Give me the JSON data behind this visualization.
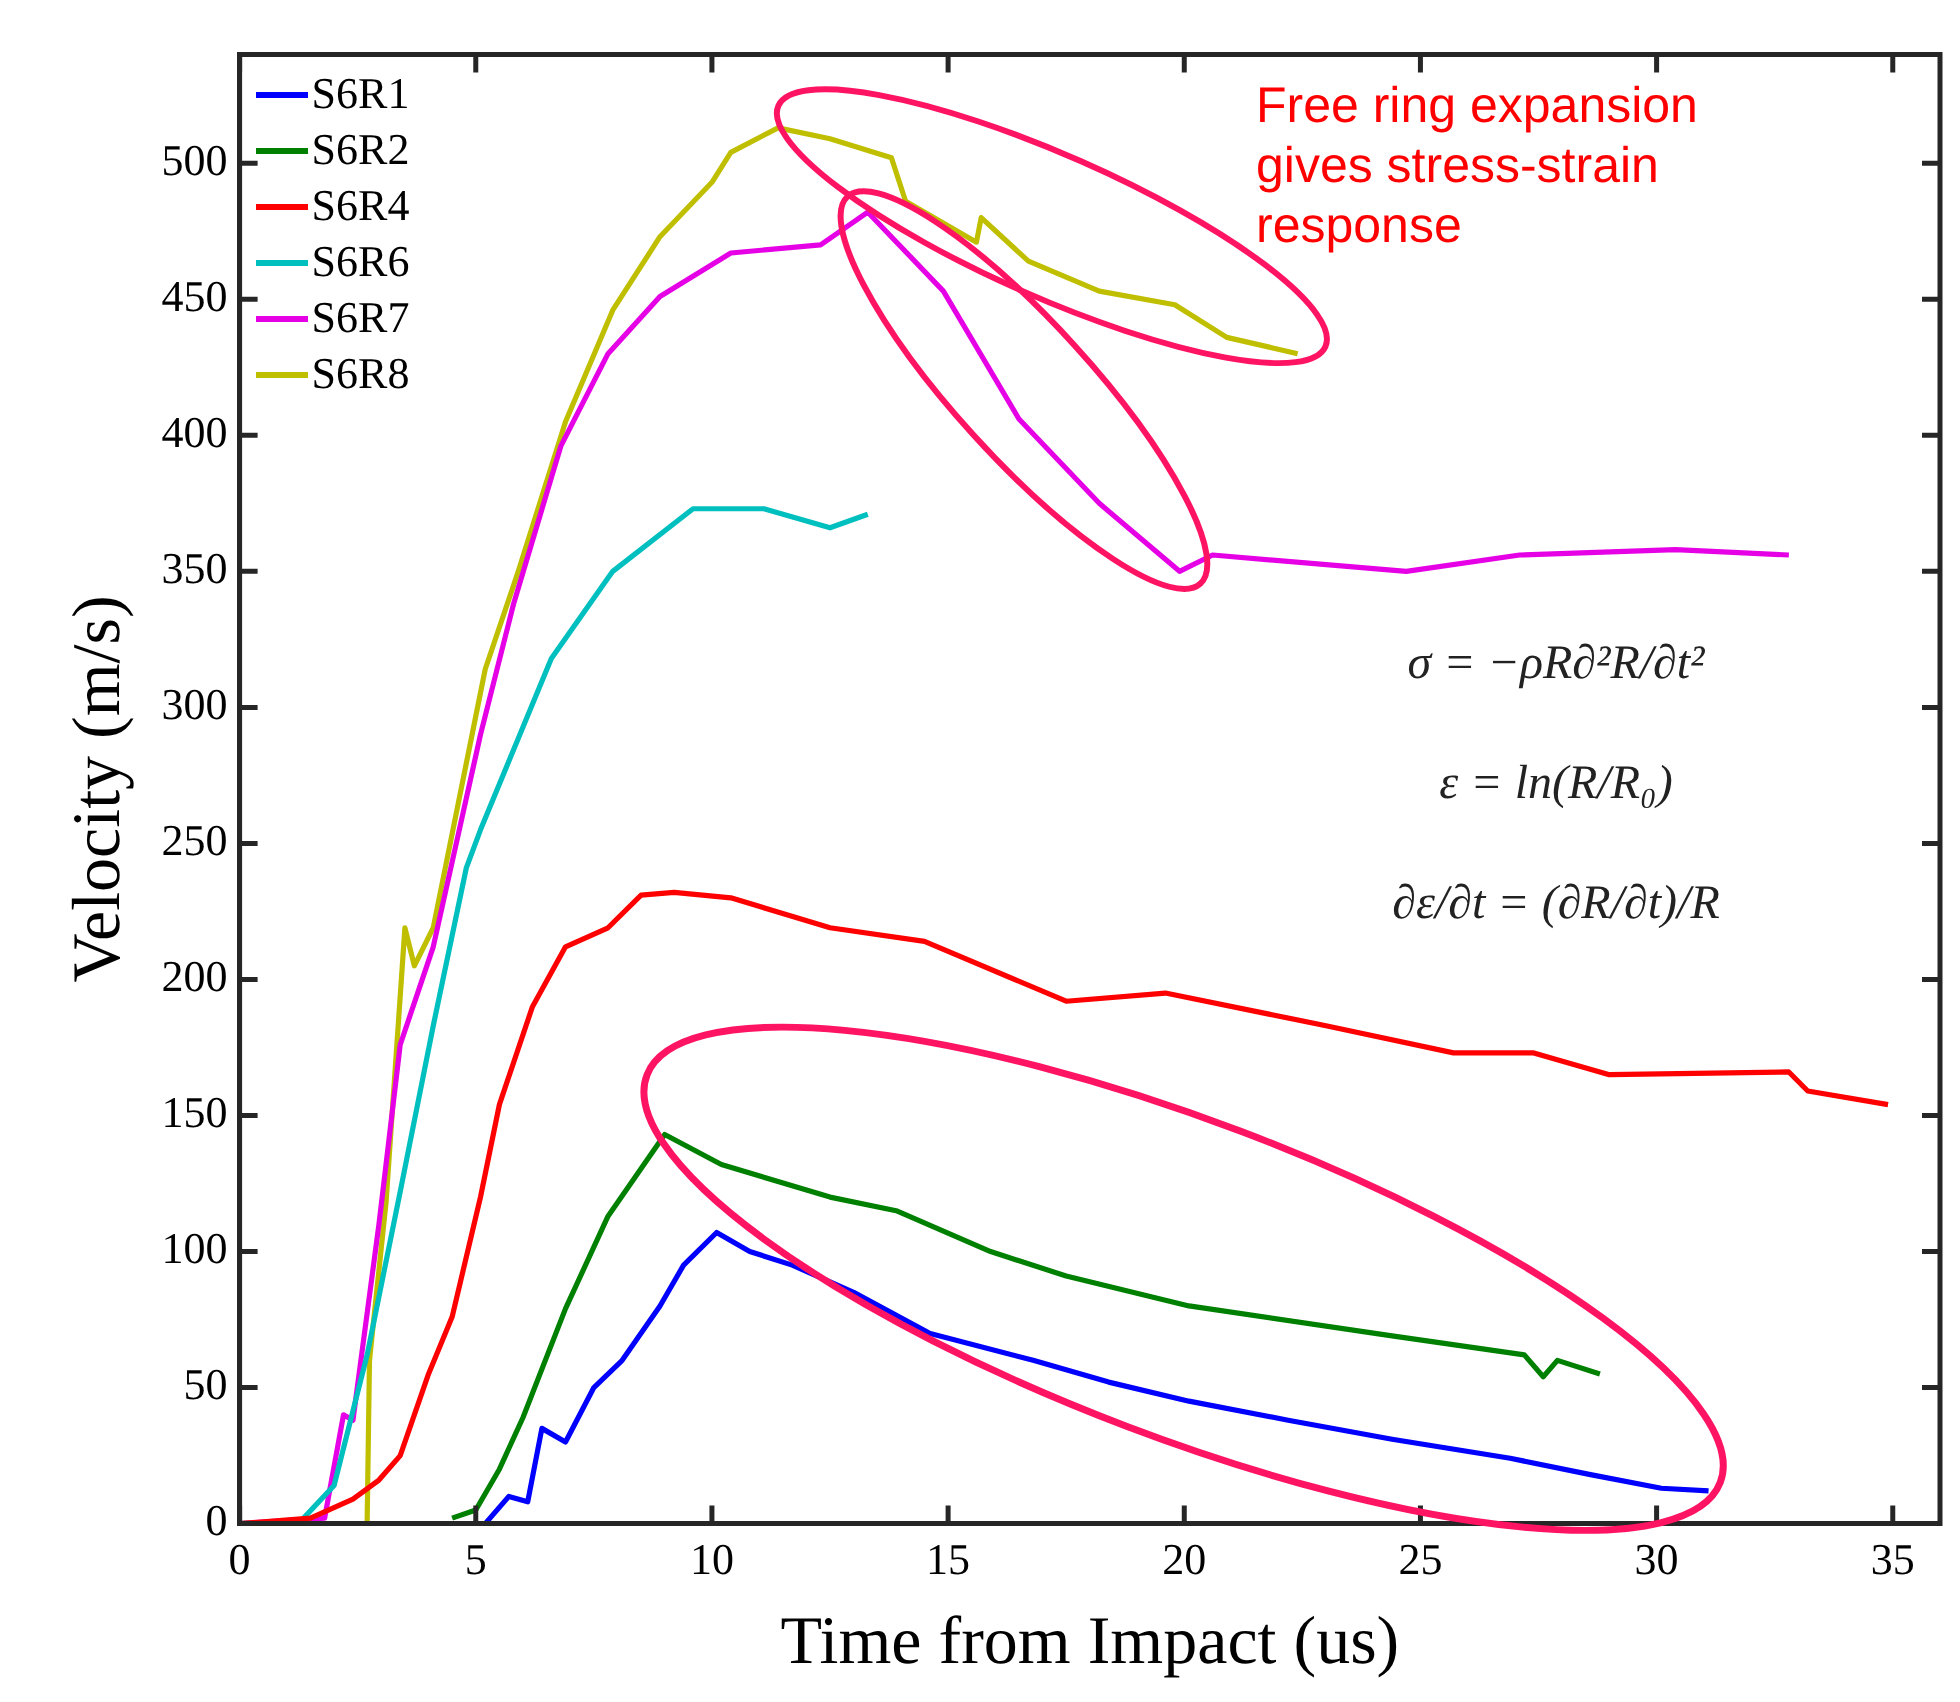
{
  "chart_data": {
    "type": "line",
    "xlabel": "Time from Impact (us)",
    "ylabel": "Velocity (m/s)",
    "xlim": [
      0,
      36
    ],
    "xticks": [
      0,
      5,
      10,
      15,
      20,
      25,
      30,
      35
    ],
    "ylim": [
      0,
      540
    ],
    "yticks": [
      0,
      50,
      100,
      150,
      200,
      250,
      300,
      350,
      400,
      450,
      500
    ],
    "grid": false,
    "legend": "top left",
    "marker": "none",
    "line_style": "solid",
    "annotations": [
      "Free ring expansion gives stress-strain response",
      "σ = −ρR∂²R/∂t²",
      "ε = ln(R/R₀)",
      "∂ε/∂t = (∂R/∂t)/R"
    ],
    "series": [
      {
        "name": "S6R1",
        "color": "#0000ff",
        "x": [
          4.9,
          5.2,
          5.7,
          6.1,
          6.4,
          6.9,
          7.5,
          8.1,
          8.9,
          9.4,
          10.1,
          10.8,
          11.7,
          13,
          14.6,
          16.8,
          18.4,
          20.1,
          22.2,
          24.4,
          26.9,
          28.6,
          30.1,
          31.1
        ],
        "values": [
          0,
          0,
          10,
          8,
          35,
          30,
          50,
          60,
          80,
          95,
          107,
          100,
          95,
          85,
          70,
          60,
          52,
          45,
          38,
          31,
          24,
          18,
          13,
          12
        ]
      },
      {
        "name": "S6R2",
        "color": "#008000",
        "x": [
          4.5,
          5,
          5.5,
          6,
          6.9,
          7.8,
          9,
          10.2,
          12.5,
          13.9,
          15.9,
          17.5,
          20.1,
          24.4,
          27.2,
          27.6,
          27.9,
          28.8
        ],
        "values": [
          2,
          5,
          20,
          39,
          79,
          113,
          143,
          132,
          120,
          115,
          100,
          91,
          80,
          69,
          62,
          54,
          60,
          55
        ]
      },
      {
        "name": "S6R4",
        "color": "#ff0000",
        "x": [
          0,
          1.5,
          2.4,
          2.95,
          3.4,
          4,
          4.5,
          5.1,
          5.5,
          6.2,
          6.9,
          7.8,
          8.5,
          9.2,
          10.4,
          12.5,
          14.5,
          17.5,
          19.6,
          23,
          25.7,
          27.4,
          29,
          32.8,
          33.2,
          34.9
        ],
        "values": [
          0,
          2,
          9,
          16,
          25,
          55,
          76,
          120,
          154,
          190,
          212,
          219,
          231,
          232,
          230,
          219,
          214,
          192,
          195,
          183,
          173,
          173,
          165,
          166,
          159,
          154
        ]
      },
      {
        "name": "S6R6",
        "color": "#00bfbf",
        "x": [
          0,
          1.3,
          2,
          2.7,
          3.4,
          4.1,
          4.8,
          5.1,
          6.6,
          7.9,
          9.6,
          11.1,
          12.5,
          13.3
        ],
        "values": [
          0,
          1,
          14,
          62,
          122,
          183,
          241,
          255,
          318,
          350,
          373,
          373,
          366,
          371
        ]
      },
      {
        "name": "S6R7",
        "color": "#e600e6",
        "x": [
          0,
          1.8,
          2.2,
          2.4,
          2.95,
          3.4,
          4.1,
          5.1,
          5.8,
          6.8,
          7.8,
          8.9,
          10.4,
          12.3,
          13.3,
          14.9,
          16.5,
          18.2,
          19.9,
          20.6,
          24.7,
          27.1,
          30.4,
          32.8
        ],
        "values": [
          0,
          2,
          40,
          38,
          110,
          176,
          212,
          290,
          338,
          396,
          430,
          451,
          467,
          470,
          482,
          453,
          406,
          375,
          350,
          356,
          350,
          356,
          358,
          356
        ]
      },
      {
        "name": "S6R8",
        "color": "#bfbf00",
        "x": [
          0,
          2.7,
          2.75,
          3.1,
          3.5,
          3.7,
          4.1,
          5.2,
          5.9,
          6.9,
          7.9,
          8.9,
          10,
          10.4,
          11.4,
          12.5,
          13.8,
          14.1,
          15.6,
          15.7,
          16.7,
          18.2,
          19.8,
          20.9,
          22.4
        ],
        "values": [
          0,
          0,
          60,
          118,
          219,
          205,
          219,
          314,
          350,
          405,
          446,
          473,
          493,
          504,
          513,
          509,
          502,
          486,
          471,
          480,
          464,
          453,
          448,
          436,
          430
        ]
      }
    ]
  }
}
